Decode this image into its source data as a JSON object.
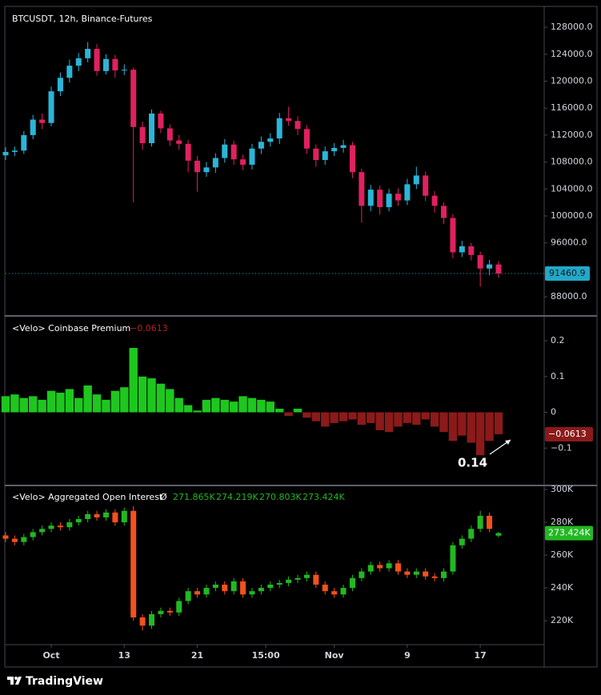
{
  "chart_data": [
    {
      "type": "candlestick",
      "title": "BTCUSDT, 12h, Binance-Futures",
      "up_color": "#2bb5d8",
      "down_color": "#e0215f",
      "xlim": [
        0,
        59
      ],
      "ylim": [
        85400,
        131100
      ],
      "yticks": [
        {
          "value": 128000,
          "label": "128000.0"
        },
        {
          "value": 124000,
          "label": "124000.0"
        },
        {
          "value": 120000,
          "label": "120000.0"
        },
        {
          "value": 116000,
          "label": "116000.0"
        },
        {
          "value": 112000,
          "label": "112000.0"
        },
        {
          "value": 108000,
          "label": "108000.0"
        },
        {
          "value": 104000,
          "label": "104000.0"
        },
        {
          "value": 100000,
          "label": "100000.0"
        },
        {
          "value": 96000,
          "label": "96000.0"
        },
        {
          "value": 88000,
          "label": "88000.0"
        }
      ],
      "open": [
        109000,
        109500,
        109700,
        112000,
        114300,
        113800,
        118500,
        120500,
        122300,
        123400,
        124800,
        121500,
        123300,
        121600,
        121700,
        113200,
        110800,
        115200,
        113000,
        111200,
        110700,
        108200,
        106500,
        107200,
        108600,
        110600,
        108400,
        107600,
        110000,
        111000,
        111500,
        114500,
        114100,
        112900,
        110000,
        108300,
        109600,
        110100,
        110500,
        106500,
        101500,
        103900,
        101300,
        103300,
        102300,
        104700,
        106000,
        103000,
        101500,
        99700,
        94600,
        95500,
        94200,
        92200,
        92800
      ],
      "high": [
        110200,
        110300,
        112600,
        115000,
        115200,
        119200,
        121300,
        123200,
        124200,
        125800,
        125500,
        124000,
        123900,
        122500,
        122000,
        114000,
        115800,
        115600,
        113600,
        112000,
        111300,
        108900,
        108000,
        109300,
        111400,
        111200,
        109100,
        110700,
        111800,
        112300,
        115300,
        116200,
        114800,
        113500,
        110600,
        110300,
        110800,
        111300,
        111000,
        107000,
        104600,
        104500,
        104000,
        104100,
        105500,
        107300,
        106600,
        103700,
        102000,
        100300,
        96300,
        96000,
        94700,
        93500,
        93300
      ],
      "low": [
        108300,
        108900,
        109200,
        111400,
        112900,
        113300,
        117800,
        119800,
        121500,
        122800,
        120800,
        121000,
        120500,
        120900,
        102000,
        109800,
        110300,
        112300,
        110400,
        109800,
        106500,
        103600,
        105800,
        106400,
        107900,
        107600,
        106800,
        106900,
        109200,
        110300,
        110700,
        113400,
        112000,
        109200,
        107300,
        107600,
        108900,
        109400,
        105600,
        99000,
        100700,
        100200,
        100700,
        101500,
        101600,
        104000,
        102200,
        100500,
        98800,
        93700,
        93900,
        93400,
        89500,
        91200,
        90800
      ],
      "close": [
        109500,
        109700,
        112000,
        114300,
        113800,
        118500,
        120500,
        122300,
        123400,
        124800,
        121500,
        123300,
        121600,
        121700,
        113200,
        110800,
        115200,
        113000,
        111200,
        110700,
        108200,
        106500,
        107200,
        108600,
        110600,
        108400,
        107600,
        110000,
        111000,
        111500,
        114500,
        114100,
        112900,
        110000,
        108300,
        109600,
        110100,
        110500,
        106500,
        101500,
        103900,
        101300,
        103300,
        102300,
        104700,
        106000,
        103000,
        101500,
        99700,
        94600,
        95500,
        94200,
        92200,
        92800,
        91460.9
      ],
      "last_color": "#22a8c8"
    },
    {
      "type": "histogram",
      "title": "<Velo> Coinbase Premium",
      "pos_color": "#1ec71e",
      "neg_color": "#8b1a1a",
      "xlim": [
        0,
        59
      ],
      "ylim": [
        -0.2,
        0.265
      ],
      "yticks": [
        0.2,
        0.1,
        0,
        {
          "value": -0.1,
          "label": "−0.1"
        }
      ],
      "values": [
        0.045,
        0.05,
        0.04,
        0.045,
        0.035,
        0.06,
        0.055,
        0.065,
        0.04,
        0.075,
        0.05,
        0.035,
        0.06,
        0.07,
        0.18,
        0.1,
        0.095,
        0.08,
        0.065,
        0.04,
        0.02,
        0.005,
        0.035,
        0.04,
        0.035,
        0.03,
        0.045,
        0.04,
        0.035,
        0.03,
        0.01,
        -0.01,
        0.01,
        -0.015,
        -0.025,
        -0.04,
        -0.03,
        -0.025,
        -0.02,
        -0.035,
        -0.03,
        -0.05,
        -0.055,
        -0.04,
        -0.03,
        -0.035,
        -0.02,
        -0.04,
        -0.055,
        -0.08,
        -0.065,
        -0.085,
        -0.12,
        -0.08,
        -0.0613
      ],
      "last_value_label": "−0.0613",
      "annotation": "0.14"
    },
    {
      "type": "candlestick",
      "title": "<Velo> Aggregated Open Interest",
      "symbol": "Ø",
      "up_color": "#22b822",
      "down_color": "#f4511e",
      "xlim": [
        0,
        59
      ],
      "ylim": [
        205900,
        302000
      ],
      "yticks": [
        {
          "value": 300000,
          "label": "300K"
        },
        {
          "value": 280000,
          "label": "280K"
        },
        {
          "value": 260000,
          "label": "260K"
        },
        {
          "value": 240000,
          "label": "240K"
        },
        {
          "value": 220000,
          "label": "220K"
        }
      ],
      "xticks": [
        {
          "value": 5,
          "label": "Oct"
        },
        13,
        21,
        {
          "value": 28.5,
          "label": "15:00"
        },
        {
          "value": 36,
          "label": "Nov"
        },
        {
          "value": 44,
          "label": "9"
        },
        {
          "value": 52,
          "label": "17"
        }
      ],
      "open": [
        272000,
        270000,
        268000,
        271000,
        274000,
        276000,
        278000,
        277000,
        280000,
        282000,
        285000,
        283000,
        286000,
        280000,
        287000,
        222000,
        217000,
        224000,
        226000,
        225000,
        232000,
        238000,
        236000,
        240000,
        242000,
        238000,
        244000,
        236000,
        238000,
        240000,
        242000,
        243000,
        245000,
        246000,
        248000,
        242000,
        238000,
        236000,
        240000,
        246000,
        250000,
        254000,
        252000,
        255000,
        250000,
        248000,
        250000,
        247000,
        246000,
        250000,
        266000,
        270000,
        276000,
        284000,
        271865
      ],
      "high": [
        274000,
        272000,
        273000,
        276000,
        278000,
        280000,
        280000,
        282000,
        284000,
        287000,
        287000,
        288000,
        288000,
        289000,
        290000,
        224000,
        226000,
        228000,
        228000,
        234000,
        240000,
        240000,
        242000,
        244000,
        244000,
        246000,
        246000,
        240000,
        242000,
        244000,
        245000,
        247000,
        248000,
        250000,
        250000,
        244000,
        240000,
        242000,
        248000,
        252000,
        256000,
        256000,
        257000,
        257000,
        252000,
        252000,
        252000,
        249000,
        252000,
        268000,
        272000,
        278000,
        287000,
        286000,
        274219
      ],
      "low": [
        268000,
        266000,
        266000,
        269000,
        272000,
        274000,
        275000,
        275000,
        278000,
        280000,
        281000,
        281000,
        278000,
        278000,
        220000,
        214000,
        215000,
        222000,
        223000,
        223000,
        230000,
        234000,
        234000,
        238000,
        236000,
        236000,
        234000,
        234000,
        236000,
        238000,
        240000,
        241000,
        243000,
        244000,
        240000,
        236000,
        234000,
        234000,
        238000,
        244000,
        248000,
        250000,
        250000,
        248000,
        246000,
        246000,
        245000,
        244000,
        244000,
        248000,
        264000,
        268000,
        274000,
        274000,
        270803
      ],
      "close": [
        270000,
        268000,
        271000,
        274000,
        276000,
        278000,
        277000,
        280000,
        282000,
        285000,
        283000,
        286000,
        280000,
        287000,
        222000,
        217000,
        224000,
        226000,
        225000,
        232000,
        238000,
        236000,
        240000,
        242000,
        238000,
        244000,
        236000,
        238000,
        240000,
        242000,
        243000,
        245000,
        246000,
        248000,
        242000,
        238000,
        236000,
        240000,
        246000,
        250000,
        254000,
        252000,
        255000,
        250000,
        248000,
        250000,
        247000,
        246000,
        250000,
        266000,
        270000,
        276000,
        284000,
        276000,
        273424
      ],
      "last_labels": [
        "271.865K",
        "274.219K",
        "270.803K",
        "273.424K"
      ]
    }
  ],
  "footer": {
    "brand": "TradingView"
  }
}
